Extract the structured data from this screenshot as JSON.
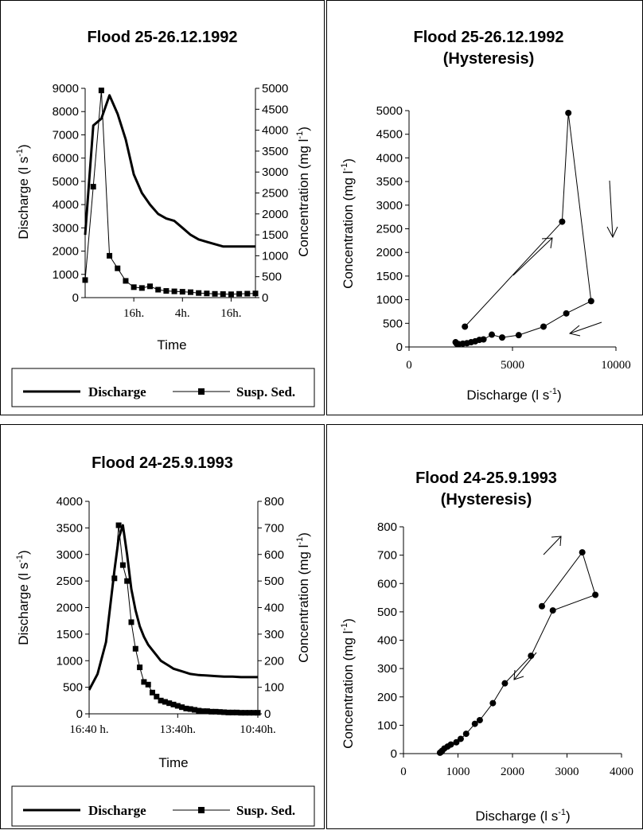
{
  "chart_data": [
    {
      "id": "p1",
      "type": "line",
      "title": "Flood 25-26.12.1992",
      "subtitle": "",
      "xlabel": "Time",
      "xtick_labels": [
        "16h.",
        "4h.",
        "16h."
      ],
      "ylabel": "Discharge (l s",
      "ylabel_sup": "-1",
      "ylabel_tail": ")",
      "y2label": "Concentration (mg l",
      "y2label_sup": "-1",
      "y2label_tail": ")",
      "ylim": [
        0,
        9000
      ],
      "yticks": [
        0,
        1000,
        2000,
        3000,
        4000,
        5000,
        6000,
        7000,
        8000,
        9000
      ],
      "y2lim": [
        0,
        5000
      ],
      "y2ticks": [
        0,
        500,
        1000,
        1500,
        2000,
        2500,
        3000,
        3500,
        4000,
        4500,
        5000
      ],
      "series": [
        {
          "name": "Discharge",
          "axis": "left",
          "marker": "none",
          "stroke": 3,
          "x": [
            0,
            1,
            2,
            3,
            4,
            5,
            6,
            7,
            8,
            9,
            10,
            11,
            12,
            13,
            14,
            15,
            16,
            17,
            18,
            19,
            20,
            21
          ],
          "values": [
            2700,
            7400,
            7700,
            8700,
            7900,
            6800,
            5300,
            4500,
            4000,
            3600,
            3400,
            3300,
            3000,
            2700,
            2500,
            2400,
            2300,
            2200,
            2200,
            2200,
            2200,
            2200
          ]
        },
        {
          "name": "Susp. Sed.",
          "axis": "right",
          "marker": "square",
          "stroke": 1,
          "x": [
            0,
            1,
            2,
            3,
            4,
            5,
            6,
            7,
            8,
            9,
            10,
            11,
            12,
            13,
            14,
            15,
            16,
            17,
            18,
            19,
            20,
            21
          ],
          "values": [
            420,
            2650,
            4950,
            1000,
            700,
            400,
            250,
            230,
            270,
            190,
            160,
            150,
            140,
            130,
            110,
            100,
            90,
            85,
            80,
            90,
            95,
            100
          ]
        }
      ],
      "legend": [
        "Discharge",
        "Susp. Sed."
      ],
      "legend_position": "bottom"
    },
    {
      "id": "p2",
      "type": "scatter",
      "title": "Flood 25-26.12.1992",
      "subtitle": "(Hysteresis)",
      "xlabel": "Discharge (l s",
      "xlabel_sup": "-1",
      "xlabel_tail": ")",
      "ylabel": "Concentration (mg l",
      "ylabel_sup": "-1",
      "ylabel_tail": ")",
      "xlim": [
        0,
        10000
      ],
      "xticks": [
        0,
        5000,
        10000
      ],
      "ylim": [
        0,
        5000
      ],
      "yticks": [
        0,
        500,
        1000,
        1500,
        2000,
        2500,
        3000,
        3500,
        4000,
        4500,
        5000
      ],
      "series": [
        {
          "name": "",
          "marker": "circle",
          "x": [
            2700,
            7400,
            7700,
            8800,
            7600,
            6500,
            5300,
            4500,
            4000,
            3600,
            3400,
            3200,
            3000,
            2800,
            2600,
            2400,
            2300,
            2250
          ],
          "values": [
            430,
            2650,
            4950,
            970,
            710,
            430,
            250,
            200,
            260,
            160,
            150,
            120,
            100,
            80,
            70,
            60,
            70,
            100
          ]
        }
      ],
      "annotations": [
        "arrow-rising",
        "arrow-falling",
        "arrow-return"
      ]
    },
    {
      "id": "p3",
      "type": "line",
      "title": "Flood 24-25.9.1993",
      "subtitle": "",
      "xlabel": "Time",
      "xtick_labels": [
        "16:40 h.",
        "13:40h.",
        "10:40h."
      ],
      "ylabel": "Discharge (l s",
      "ylabel_sup": "-1",
      "ylabel_tail": ")",
      "y2label": "Concentration (mg l",
      "y2label_sup": "-1",
      "y2label_tail": ")",
      "ylim": [
        0,
        4000
      ],
      "yticks": [
        0,
        500,
        1000,
        1500,
        2000,
        2500,
        3000,
        3500,
        4000
      ],
      "y2lim": [
        0,
        800
      ],
      "y2ticks": [
        0,
        100,
        200,
        300,
        400,
        500,
        600,
        700,
        800
      ],
      "series": [
        {
          "name": "Discharge",
          "axis": "left",
          "marker": "none",
          "stroke": 3,
          "x": [
            0,
            2,
            4,
            6,
            7,
            8,
            9,
            10,
            11,
            12,
            13,
            14,
            15,
            16,
            17,
            18,
            19,
            20,
            22,
            24,
            26,
            28,
            30,
            32,
            34,
            36,
            38,
            40
          ],
          "values": [
            450,
            750,
            1350,
            2700,
            3300,
            3550,
            3000,
            2350,
            1950,
            1650,
            1450,
            1300,
            1200,
            1100,
            1000,
            950,
            900,
            850,
            800,
            750,
            730,
            720,
            710,
            700,
            700,
            690,
            690,
            690
          ]
        },
        {
          "name": "Susp. Sed.",
          "axis": "right",
          "marker": "square",
          "stroke": 1,
          "x": [
            6,
            7,
            8,
            9,
            10,
            11,
            12,
            13,
            14,
            15,
            16,
            17,
            18,
            19,
            20,
            21,
            22,
            23,
            24,
            25,
            26,
            27,
            28,
            29,
            30,
            31,
            32,
            33,
            34,
            35,
            36,
            37,
            38,
            39,
            40
          ],
          "values": [
            510,
            710,
            560,
            500,
            345,
            245,
            175,
            120,
            110,
            80,
            65,
            50,
            45,
            40,
            35,
            30,
            25,
            20,
            18,
            15,
            12,
            10,
            10,
            8,
            8,
            7,
            6,
            5,
            5,
            5,
            4,
            4,
            4,
            4,
            4
          ]
        }
      ],
      "legend": [
        "Discharge",
        "Susp. Sed."
      ],
      "legend_position": "bottom"
    },
    {
      "id": "p4",
      "type": "scatter",
      "title": "Flood 24-25.9.1993",
      "subtitle": "(Hysteresis)",
      "xlabel": "Discharge (l s",
      "xlabel_sup": "-1",
      "xlabel_tail": ")",
      "ylabel": "Concentration (mg l",
      "ylabel_sup": "-1",
      "ylabel_tail": ")",
      "xlim": [
        0,
        4000
      ],
      "xticks": [
        0,
        1000,
        2000,
        3000,
        4000
      ],
      "ylim": [
        0,
        800
      ],
      "yticks": [
        0,
        100,
        200,
        300,
        400,
        500,
        600,
        700,
        800
      ],
      "series": [
        {
          "name": "",
          "marker": "circle",
          "x": [
            2540,
            3280,
            3520,
            2740,
            2340,
            1860,
            1640,
            1400,
            1310,
            1150,
            1050,
            970,
            870,
            810,
            750,
            710,
            690,
            670
          ],
          "values": [
            520,
            710,
            560,
            505,
            345,
            248,
            178,
            118,
            105,
            70,
            52,
            40,
            32,
            25,
            18,
            10,
            6,
            3
          ]
        }
      ],
      "annotations": [
        "arrow-rising",
        "arrow-falling"
      ]
    }
  ]
}
